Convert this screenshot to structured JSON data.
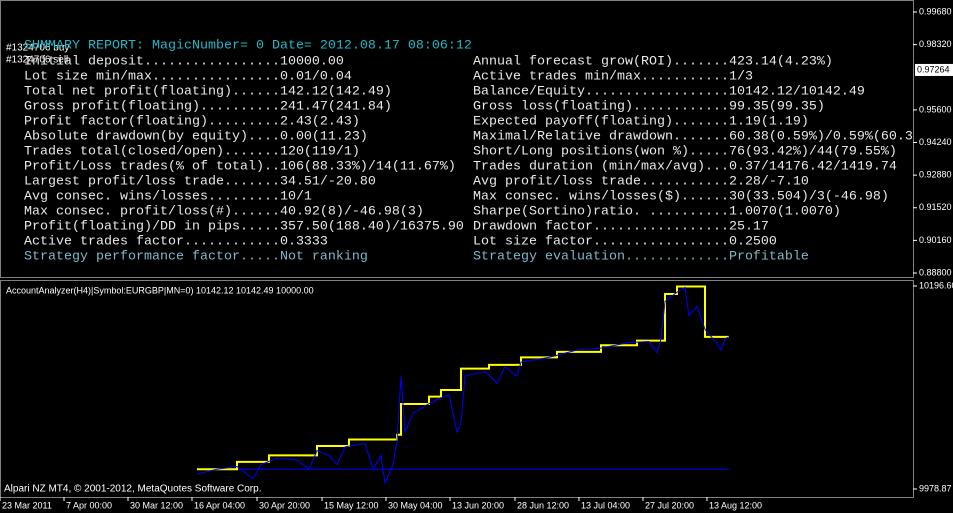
{
  "order_labels": [
    "#1324706 buy",
    "#1324706 sell"
  ],
  "report": {
    "title": "SUMMARY REPORT: MagicNumber= 0 Date= 2012.08.17 08:06:12",
    "left": [
      "Initial deposit.................10000.00",
      "Lot size min/max................0.01/0.04",
      "Total net profit(floating)......142.12(142.49)",
      "Gross profit(floating)..........241.47(241.84)",
      "Profit factor(floating).........2.43(2.43)",
      "Absolute drawdown(by equity)....0.00(11.23)",
      "Trades total(closed/open).......120(119/1)",
      "Profit/Loss trades(% of total)..106(88.33%)/14(11.67%)",
      "Largest profit/loss trade.......34.51/-20.80",
      "Avg consec. wins/losses.........10/1",
      "Max consec. profit/loss(#)......40.92(8)/-46.98(3)",
      "Profit(floating)/DD in pips.....357.50(188.40)/16375.90",
      "Active trades factor............0.3333",
      "Strategy performance factor.....Not ranking"
    ],
    "right": [
      "Annual forecast grow(ROI).......423.14(4.23%)",
      "Active trades min/max...........1/3",
      "Balance/Equity..................10142.12/10142.49",
      "Gross loss(floating)............99.35(99.35)",
      "Expected payoff(floating).......1.19(1.19)",
      "Maximal/Relative drawdown.......60.38(0.59%)/0.59%(60.3",
      "Short/Long positions(won %).....76(93.42%)/44(79.55%)",
      "Trades duration (min/max/avg)...0.37/14176.42/1419.74",
      "Avg profit/loss trade...........2.28/-7.10",
      "Max consec. wins/losses($)......30(33.504)/3(-46.98)",
      "Sharpe(Sortino)ratio. ..........1.0070(1.0070)",
      "Drawdown factor.................25.17",
      "Lot size factor.................0.2500",
      "Strategy evaluation.............Profitable"
    ]
  },
  "price_axis": {
    "ylim": [
      0.888,
      0.9968
    ],
    "yticks": [
      {
        "value": 0.9968,
        "label": "0.99680"
      },
      {
        "value": 0.9832,
        "label": "0.98320"
      },
      {
        "value": 0.956,
        "label": "0.95600"
      },
      {
        "value": 0.9424,
        "label": "0.94240"
      },
      {
        "value": 0.9288,
        "label": "0.92880"
      },
      {
        "value": 0.9152,
        "label": "0.91520"
      },
      {
        "value": 0.9016,
        "label": "0.90160"
      },
      {
        "value": 0.888,
        "label": "0.88800"
      }
    ],
    "current": {
      "value": 0.97264,
      "label": "0.97264"
    }
  },
  "chart_data": {
    "type": "line",
    "title": "AccountAnalyzer(H4)|Symbol:EURGBP|MN=0) 10142.12 10142.49 10000.00",
    "xlim": [
      -49.25,
      179
    ],
    "xticks": [
      {
        "value": -49.25,
        "label": "23 Mar 2011"
      },
      {
        "value": -33.25,
        "label": "7 Apr 00:00"
      },
      {
        "value": -17.25,
        "label": "30 Mar 12:00"
      },
      {
        "value": -1.25,
        "label": "16 Apr 04:00"
      },
      {
        "value": 15,
        "label": "30 Apr 20:00"
      },
      {
        "value": 31.25,
        "label": "15 May 12:00"
      },
      {
        "value": 47.25,
        "label": "30 May 04:00"
      },
      {
        "value": 63.25,
        "label": "13 Jun 20:00"
      },
      {
        "value": 79.5,
        "label": "28 Jun 12:00"
      },
      {
        "value": 95.5,
        "label": "13 Jul 04:00"
      },
      {
        "value": 111.5,
        "label": "27 Jul 20:00"
      },
      {
        "value": 127.5,
        "label": "13 Aug 12:00"
      }
    ],
    "ylim": [
      9978.87,
      10196.6
    ],
    "yticks": [
      {
        "value": 10196.6,
        "label": "10196.60"
      },
      9978.87
    ],
    "series": [
      {
        "color": "#0000ff",
        "x": [
          0,
          133
        ],
        "values": [
          10000,
          10000
        ]
      },
      {
        "color": "#ffff00",
        "x": [
          0,
          10,
          10,
          18,
          18,
          30,
          30,
          38,
          38,
          50,
          50,
          51,
          51,
          58,
          58,
          61,
          61,
          66,
          66,
          73,
          73,
          81,
          81,
          90,
          90,
          101,
          101,
          110,
          110,
          117,
          117,
          120,
          120,
          127,
          127,
          133
        ],
        "values": [
          10000,
          10000,
          10008,
          10008,
          10015,
          10015,
          10025,
          10025,
          10032,
          10032,
          10037,
          10037,
          10070,
          10070,
          10078,
          10078,
          10085,
          10085,
          10108,
          10108,
          10112,
          10112,
          10120,
          10120,
          10126,
          10126,
          10133,
          10133,
          10138,
          10138,
          10188,
          10188,
          10196,
          10196,
          10142,
          10142
        ]
      },
      {
        "color": "#0000ff",
        "x": [
          0,
          5,
          10,
          14,
          16,
          20,
          25,
          28,
          30,
          33,
          35,
          37,
          42,
          44,
          46,
          47,
          49,
          50,
          51,
          52,
          54,
          57,
          60,
          63,
          64,
          65,
          66,
          67,
          72,
          75,
          77,
          80,
          81,
          88,
          95,
          101,
          108,
          113,
          115,
          116,
          117,
          120,
          122,
          123,
          125,
          127,
          129,
          131,
          132,
          133
        ],
        "values": [
          9995,
          10000,
          10003,
          9990,
          10005,
          10012,
          10010,
          10000,
          10020,
          10015,
          10005,
          10024,
          10028,
          10000,
          10015,
          9985,
          10005,
          10030,
          10100,
          10040,
          10060,
          10068,
          10075,
          10080,
          10060,
          10040,
          10050,
          10100,
          10105,
          10092,
          10110,
          10100,
          10115,
          10120,
          10128,
          10130,
          10136,
          10137,
          10125,
          10140,
          10180,
          10190,
          10195,
          10165,
          10175,
          10150,
          10140,
          10128,
          10140,
          10142
        ]
      }
    ],
    "footer": "Alpari NZ MT4, © 2001-2012, MetaQuotes Software Corp."
  }
}
